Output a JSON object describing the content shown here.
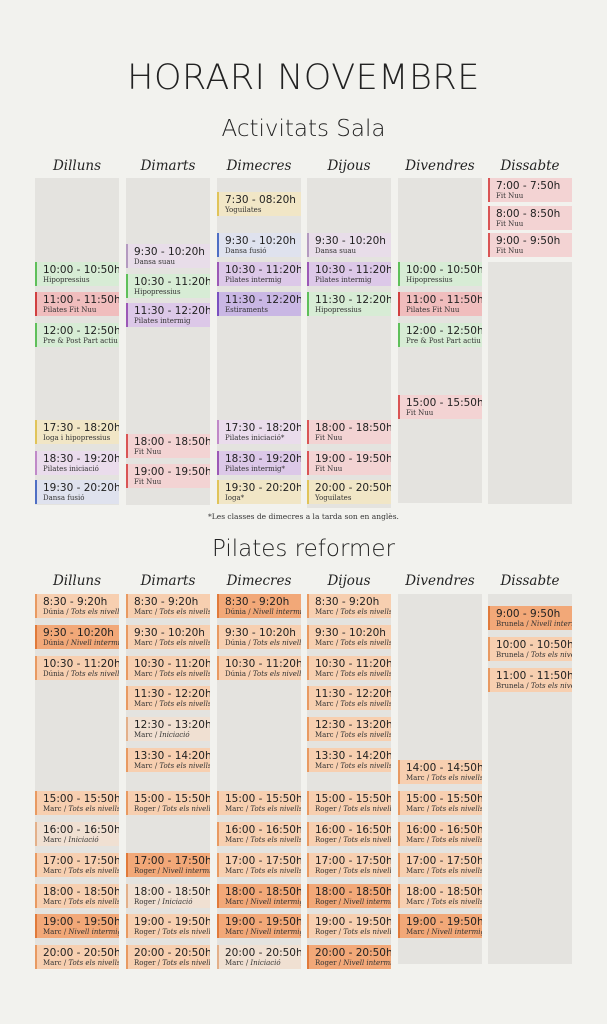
{
  "header": {
    "title": "HORARI NOVEMBRE"
  },
  "sala": {
    "title": "Activitats Sala",
    "days": [
      "Dilluns",
      "Dimarts",
      "Dimecres",
      "Dijous",
      "Divendres",
      "Dissabte"
    ],
    "note": "*Les classes de dimecres a la tarda son en anglès.",
    "classes": [
      {
        "d": 5,
        "time": "7:00 - 7:50h",
        "label": "Fit Nuu",
        "kind": "fit"
      },
      {
        "d": 5,
        "time": "8:00 - 8:50h",
        "label": "Fit Nuu",
        "kind": "fit"
      },
      {
        "d": 5,
        "time": "9:00 - 9:50h",
        "label": "Fit Nuu",
        "kind": "fit"
      },
      {
        "d": 2,
        "time": "7:30 - 08:20h",
        "label": "Yoguilates",
        "kind": "yogui"
      },
      {
        "d": 1,
        "time": "9:30 - 10:20h",
        "label": "Dansa suau",
        "kind": "dansa"
      },
      {
        "d": 2,
        "time": "9:30 - 10:20h",
        "label": "Dansa fusió",
        "kind": "dansafusio"
      },
      {
        "d": 3,
        "time": "9:30 - 10:20h",
        "label": "Dansa suau",
        "kind": "dansa"
      },
      {
        "d": 0,
        "time": "10:00 - 10:50h",
        "label": "Hipopressius",
        "kind": "hipo"
      },
      {
        "d": 1,
        "time": "10:30 - 11:20h",
        "label": "Hipopressius",
        "kind": "hipo"
      },
      {
        "d": 2,
        "time": "10:30 - 11:20h",
        "label": "Pilates intermig",
        "kind": "pilint"
      },
      {
        "d": 3,
        "time": "10:30 - 11:20h",
        "label": "Pilates intermig",
        "kind": "pilint"
      },
      {
        "d": 4,
        "time": "10:00 - 10:50h",
        "label": "Hipopressius",
        "kind": "hipo"
      },
      {
        "d": 0,
        "time": "11:00 - 11:50h",
        "label": "Pilates Fit Nuu",
        "kind": "pilfit"
      },
      {
        "d": 1,
        "time": "11:30 - 12:20h",
        "label": "Pilates intermig",
        "kind": "pilint"
      },
      {
        "d": 2,
        "time": "11:30 - 12:20h",
        "label": "Estiraments",
        "kind": "estir"
      },
      {
        "d": 3,
        "time": "11:30 - 12:20h",
        "label": "Hipopressius",
        "kind": "hipo"
      },
      {
        "d": 4,
        "time": "11:00 - 11:50h",
        "label": "Pilates Fit Nuu",
        "kind": "pilfit"
      },
      {
        "d": 0,
        "time": "12:00 - 12:50h",
        "label": "Pre & Post Part actiu",
        "kind": "hipo"
      },
      {
        "d": 4,
        "time": "12:00 - 12:50h",
        "label": "Pre & Post Part actiu",
        "kind": "hipo"
      },
      {
        "d": 4,
        "time": "15:00 - 15:50h",
        "label": "Fit Nuu",
        "kind": "fit"
      },
      {
        "d": 0,
        "time": "17:30 - 18:20h",
        "label": "Ioga i hipopressius",
        "kind": "yogui"
      },
      {
        "d": 2,
        "time": "17:30 - 18:20h",
        "label": "Pilates iniciació*",
        "kind": "pilini"
      },
      {
        "d": 3,
        "time": "18:00 - 18:50h",
        "label": "Fit Nuu",
        "kind": "fit"
      },
      {
        "d": 1,
        "time": "18:00 - 18:50h",
        "label": "Fit Nuu",
        "kind": "fit"
      },
      {
        "d": 0,
        "time": "18:30 - 19:20h",
        "label": "Pilates iniciació",
        "kind": "pilini"
      },
      {
        "d": 2,
        "time": "18:30 - 19:20h",
        "label": "Pilates intermig*",
        "kind": "pilint"
      },
      {
        "d": 1,
        "time": "19:00 - 19:50h",
        "label": "Fit Nuu",
        "kind": "fit"
      },
      {
        "d": 3,
        "time": "19:00 - 19:50h",
        "label": "Fit Nuu",
        "kind": "fit"
      },
      {
        "d": 0,
        "time": "19:30 - 20:20h",
        "label": "Dansa fusió",
        "kind": "dansafusio"
      },
      {
        "d": 2,
        "time": "19:30 - 20:20h",
        "label": "Ioga*",
        "kind": "yogui"
      },
      {
        "d": 3,
        "time": "20:00 - 20:50h",
        "label": "Yoguilates",
        "kind": "yogui"
      }
    ],
    "colors": {
      "fit": {
        "bg": "#f3d3d3",
        "bar": "#d95555"
      },
      "yogui": {
        "bg": "#f1e6c6",
        "bar": "#e0c45a"
      },
      "dansa": {
        "bg": "#e8dde9",
        "bar": "#b49bc0"
      },
      "dansafusio": {
        "bg": "#dfe2ee",
        "bar": "#4f6fc4"
      },
      "hipo": {
        "bg": "#d7ecd5",
        "bar": "#5fbf5a"
      },
      "pilint": {
        "bg": "#dcc8e8",
        "bar": "#9b59b6"
      },
      "pilfit": {
        "bg": "#f0bdbd",
        "bar": "#d04040"
      },
      "estir": {
        "bg": "#c9b7e4",
        "bar": "#7a50c0"
      },
      "pilini": {
        "bg": "#eadcec",
        "bar": "#c08ac8"
      }
    }
  },
  "reformer": {
    "title": "Pilates reformer",
    "days": [
      "Dilluns",
      "Dimarts",
      "Dimecres",
      "Dijous",
      "Divendres",
      "Dissabte"
    ],
    "classes": [
      {
        "d": 0,
        "r": 0,
        "time": "8:30 - 9:20h",
        "who": "Dúnia",
        "level": "Tots els nivells",
        "tone": "l"
      },
      {
        "d": 1,
        "r": 0,
        "time": "8:30 - 9:20h",
        "who": "Marc",
        "level": "Tots els nivells",
        "tone": "l"
      },
      {
        "d": 2,
        "r": 0,
        "time": "8:30 - 9:20h",
        "who": "Dúnia",
        "level": "Nivell intermig",
        "tone": "m"
      },
      {
        "d": 3,
        "r": 0,
        "time": "8:30 - 9:20h",
        "who": "Marc",
        "level": "Tots els nivells",
        "tone": "l"
      },
      {
        "d": 0,
        "r": 1,
        "time": "9:30 - 10:20h",
        "who": "Dúnia",
        "level": "Nivell intermig",
        "tone": "m"
      },
      {
        "d": 1,
        "r": 1,
        "time": "9:30 - 10:20h",
        "who": "Marc",
        "level": "Tots els nivells",
        "tone": "l"
      },
      {
        "d": 2,
        "r": 1,
        "time": "9:30 - 10:20h",
        "who": "Dúnia",
        "level": "Tots els nivells",
        "tone": "l"
      },
      {
        "d": 3,
        "r": 1,
        "time": "9:30 - 10:20h",
        "who": "Marc",
        "level": "Tots els nivells",
        "tone": "l"
      },
      {
        "d": 0,
        "r": 2,
        "time": "10:30 - 11:20h",
        "who": "Dúnia",
        "level": "Tots els nivells",
        "tone": "l"
      },
      {
        "d": 1,
        "r": 2,
        "time": "10:30 - 11:20h",
        "who": "Marc",
        "level": "Tots els nivells",
        "tone": "l"
      },
      {
        "d": 2,
        "r": 2,
        "time": "10:30 - 11:20h",
        "who": "Dúnia",
        "level": "Tots els nivells",
        "tone": "l"
      },
      {
        "d": 3,
        "r": 2,
        "time": "10:30 - 11:20h",
        "who": "Marc",
        "level": "Tots els nivells",
        "tone": "l"
      },
      {
        "d": 1,
        "r": 3,
        "time": "11:30 - 12:20h",
        "who": "Marc",
        "level": "Tots els nivells",
        "tone": "l"
      },
      {
        "d": 3,
        "r": 3,
        "time": "11:30 - 12:20h",
        "who": "Marc",
        "level": "Tots els nivells",
        "tone": "l"
      },
      {
        "d": 1,
        "r": 4,
        "time": "12:30 - 13:20h",
        "who": "Marc",
        "level": "Iniciació",
        "tone": "x"
      },
      {
        "d": 3,
        "r": 4,
        "time": "12:30 - 13:20h",
        "who": "Marc",
        "level": "Tots els nivells",
        "tone": "l"
      },
      {
        "d": 1,
        "r": 5,
        "time": "13:30 - 14:20h",
        "who": "Marc",
        "level": "Tots els nivells",
        "tone": "l"
      },
      {
        "d": 3,
        "r": 5,
        "time": "13:30 - 14:20h",
        "who": "Marc",
        "level": "Tots els nivells",
        "tone": "l"
      },
      {
        "d": 4,
        "r": 5.4,
        "time": "14:00 - 14:50h",
        "who": "Marc",
        "level": "Tots els nivells",
        "tone": "l"
      },
      {
        "d": 0,
        "r": 6.4,
        "time": "15:00 - 15:50h",
        "who": "Marc",
        "level": "Tots els nivells",
        "tone": "l"
      },
      {
        "d": 1,
        "r": 6.4,
        "time": "15:00 - 15:50h",
        "who": "Roger",
        "level": "Tots els nivells",
        "tone": "l"
      },
      {
        "d": 2,
        "r": 6.4,
        "time": "15:00 - 15:50h",
        "who": "Marc",
        "level": "Tots els nivells",
        "tone": "l"
      },
      {
        "d": 3,
        "r": 6.4,
        "time": "15:00 - 15:50h",
        "who": "Roger",
        "level": "Tots els nivells",
        "tone": "l"
      },
      {
        "d": 4,
        "r": 6.4,
        "time": "15:00 - 15:50h",
        "who": "Marc",
        "level": "Tots els nivells",
        "tone": "l"
      },
      {
        "d": 0,
        "r": 7.4,
        "time": "16:00 - 16:50h",
        "who": "Marc",
        "level": "Iniciació",
        "tone": "x"
      },
      {
        "d": 2,
        "r": 7.4,
        "time": "16:00 - 16:50h",
        "who": "Marc",
        "level": "Tots els nivells",
        "tone": "l"
      },
      {
        "d": 3,
        "r": 7.4,
        "time": "16:00 - 16:50h",
        "who": "Roger",
        "level": "Tots els nivells",
        "tone": "l"
      },
      {
        "d": 4,
        "r": 7.4,
        "time": "16:00 - 16:50h",
        "who": "Marc",
        "level": "Tots els nivells",
        "tone": "l"
      },
      {
        "d": 0,
        "r": 8.4,
        "time": "17:00 - 17:50h",
        "who": "Marc",
        "level": "Tots els nivells",
        "tone": "l"
      },
      {
        "d": 1,
        "r": 8.4,
        "time": "17:00 - 17:50h",
        "who": "Roger",
        "level": "Nivell intermig",
        "tone": "m"
      },
      {
        "d": 2,
        "r": 8.4,
        "time": "17:00 - 17:50h",
        "who": "Marc",
        "level": "Tots els nivells",
        "tone": "l"
      },
      {
        "d": 3,
        "r": 8.4,
        "time": "17:00 - 17:50h",
        "who": "Roger",
        "level": "Tots els nivells",
        "tone": "l"
      },
      {
        "d": 4,
        "r": 8.4,
        "time": "17:00 - 17:50h",
        "who": "Marc",
        "level": "Tots els nivells",
        "tone": "l"
      },
      {
        "d": 0,
        "r": 9.4,
        "time": "18:00 - 18:50h",
        "who": "Marc",
        "level": "Tots els nivells",
        "tone": "l"
      },
      {
        "d": 1,
        "r": 9.4,
        "time": "18:00 - 18:50h",
        "who": "Roger",
        "level": "Iniciació",
        "tone": "x"
      },
      {
        "d": 2,
        "r": 9.4,
        "time": "18:00 - 18:50h",
        "who": "Marc",
        "level": "Nivell intermig",
        "tone": "m"
      },
      {
        "d": 3,
        "r": 9.4,
        "time": "18:00 - 18:50h",
        "who": "Roger",
        "level": "Nivell intermig",
        "tone": "m"
      },
      {
        "d": 4,
        "r": 9.4,
        "time": "18:00 - 18:50h",
        "who": "Marc",
        "level": "Tots els nivells",
        "tone": "l"
      },
      {
        "d": 0,
        "r": 10.4,
        "time": "19:00 - 19:50h",
        "who": "Marc",
        "level": "Nivell intermig",
        "tone": "m"
      },
      {
        "d": 1,
        "r": 10.4,
        "time": "19:00 - 19:50h",
        "who": "Roger",
        "level": "Tots els nivells",
        "tone": "l"
      },
      {
        "d": 2,
        "r": 10.4,
        "time": "19:00 - 19:50h",
        "who": "Marc",
        "level": "Nivell intermig",
        "tone": "m"
      },
      {
        "d": 3,
        "r": 10.4,
        "time": "19:00 - 19:50h",
        "who": "Roger",
        "level": "Tots els nivells",
        "tone": "l"
      },
      {
        "d": 4,
        "r": 10.4,
        "time": "19:00 - 19:50h",
        "who": "Marc",
        "level": "Nivell intermig",
        "tone": "m"
      },
      {
        "d": 0,
        "r": 11.4,
        "time": "20:00 - 20:50h",
        "who": "Marc",
        "level": "Tots els nivells",
        "tone": "l"
      },
      {
        "d": 1,
        "r": 11.4,
        "time": "20:00 - 20:50h",
        "who": "Roger",
        "level": "Tots els nivells",
        "tone": "l"
      },
      {
        "d": 2,
        "r": 11.4,
        "time": "20:00 - 20:50h",
        "who": "Marc",
        "level": "Iniciació",
        "tone": "x"
      },
      {
        "d": 3,
        "r": 11.4,
        "time": "20:00 - 20:50h",
        "who": "Roger",
        "level": "Nivell intermig",
        "tone": "m"
      },
      {
        "d": 5,
        "r": 0.4,
        "time": "9:00 - 9:50h",
        "who": "Brunela",
        "level": "Nivell intermig",
        "tone": "m"
      },
      {
        "d": 5,
        "r": 1.4,
        "time": "10:00 - 10:50h",
        "who": "Brunela",
        "level": "Tots els nivells",
        "tone": "l"
      },
      {
        "d": 5,
        "r": 2.4,
        "time": "11:00 - 11:50h",
        "who": "Brunela",
        "level": "Tots els nivells",
        "tone": "l"
      }
    ],
    "colors": {
      "l": {
        "bg": "#f7cfb0",
        "bar": "#e89a62"
      },
      "m": {
        "bg": "#f2a878",
        "bar": "#e07a3a"
      },
      "x": {
        "bg": "#f0e0d2",
        "bar": "#e3b08a"
      }
    }
  }
}
